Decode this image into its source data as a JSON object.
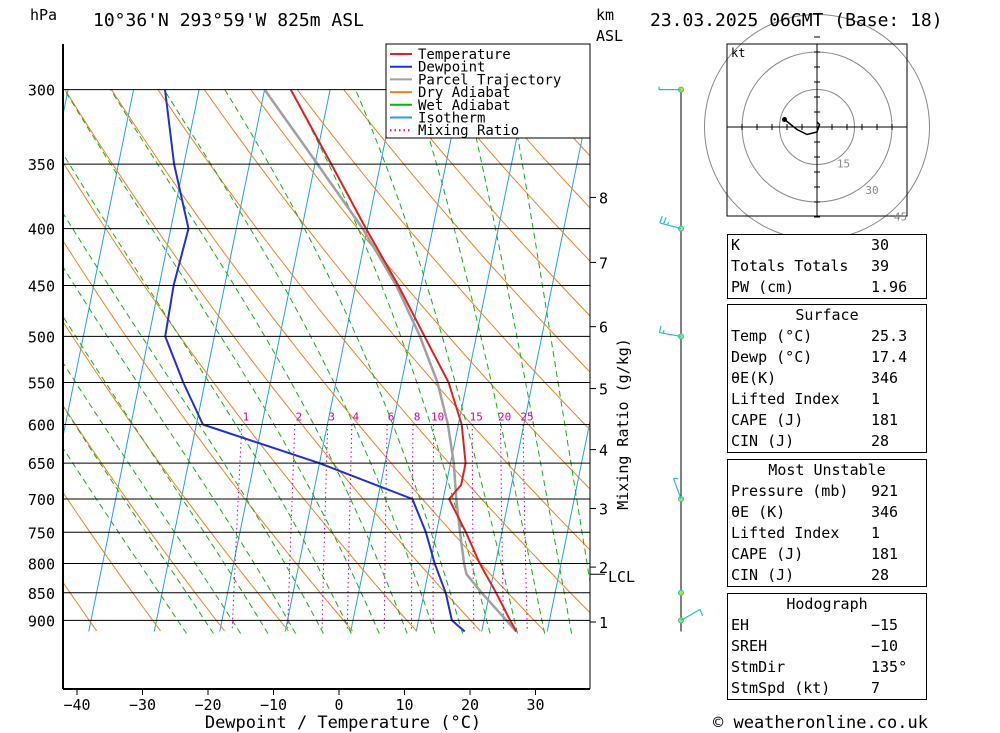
{
  "header": {
    "units_left": "hPa",
    "location": "10°36'N 293°59'W 825m ASL",
    "units_right_1": "km",
    "units_right_2": "ASL",
    "date": "23.03.2025 06GMT (Base: 18)"
  },
  "footer": {
    "copyright": "© weatheronline.co.uk"
  },
  "chart_data": {
    "type": "line",
    "subtype": "skew-T log-P",
    "xlabel": "Dewpoint / Temperature (°C)",
    "ylabel": "hPa",
    "right_axis_label": "Mixing Ratio (g/kg)",
    "xlim": [
      -42,
      38
    ],
    "ylim_hpa": [
      300,
      920
    ],
    "pressure_levels": [
      300,
      350,
      400,
      450,
      500,
      550,
      600,
      650,
      700,
      750,
      800,
      850,
      900
    ],
    "temp_ticks": [
      -40,
      -30,
      -20,
      -10,
      0,
      10,
      20,
      30
    ],
    "km_ticks": [
      {
        "km": 1,
        "p": 903
      },
      {
        "km": 2,
        "p": 806
      },
      {
        "km": 3,
        "p": 714
      },
      {
        "km": 4,
        "p": 632
      },
      {
        "km": 5,
        "p": 557
      },
      {
        "km": 6,
        "p": 490
      },
      {
        "km": 7,
        "p": 429
      },
      {
        "km": 8,
        "p": 375
      }
    ],
    "lcl": {
      "label": "LCL",
      "p": 818
    },
    "mixing_ratio_labels": [
      "1",
      "2",
      "3",
      "4",
      "6",
      "8",
      "10",
      "15",
      "20",
      "25"
    ],
    "mixing_ratio_values": [
      1,
      2,
      3,
      4,
      6,
      8,
      10,
      15,
      20,
      25
    ],
    "legend": [
      "Temperature",
      "Dewpoint",
      "Parcel Trajectory",
      "Dry Adiabat",
      "Wet Adiabat",
      "Isotherm",
      "Mixing Ratio"
    ],
    "colors": {
      "temperature": "#e02020",
      "dewpoint": "#2030d0",
      "parcel": "#a0a0a0",
      "dry_adiabat": "#f08020",
      "wet_adiabat": "#10b010",
      "isotherm": "#20a0e0",
      "mixing_ratio": "#d000a0",
      "wind": "#20c0c0"
    },
    "series": [
      {
        "name": "Temperature",
        "points": [
          [
            921,
            25.3
          ],
          [
            900,
            24
          ],
          [
            850,
            21
          ],
          [
            800,
            17.6
          ],
          [
            750,
            14.5
          ],
          [
            700,
            10.9
          ],
          [
            680,
            12.3
          ],
          [
            650,
            12.3
          ],
          [
            600,
            10.5
          ],
          [
            550,
            7.2
          ],
          [
            500,
            2.1
          ],
          [
            450,
            -3.5
          ],
          [
            400,
            -10.2
          ],
          [
            350,
            -17.5
          ],
          [
            300,
            -26
          ]
        ]
      },
      {
        "name": "Dewpoint",
        "points": [
          [
            921,
            17.4
          ],
          [
            900,
            15.1
          ],
          [
            850,
            13.3
          ],
          [
            800,
            10.7
          ],
          [
            750,
            8.4
          ],
          [
            700,
            5.3
          ],
          [
            650,
            -10
          ],
          [
            600,
            -29
          ],
          [
            550,
            -33.3
          ],
          [
            500,
            -37.5
          ],
          [
            450,
            -37.8
          ],
          [
            400,
            -37.3
          ],
          [
            350,
            -41.5
          ],
          [
            300,
            -45.2
          ]
        ]
      },
      {
        "name": "Parcel Trajectory",
        "points": [
          [
            921,
            25.3
          ],
          [
            850,
            18.8
          ],
          [
            818,
            15.9
          ],
          [
            800,
            15.2
          ],
          [
            750,
            13.6
          ],
          [
            700,
            12
          ],
          [
            650,
            10.5
          ],
          [
            600,
            8.4
          ],
          [
            550,
            5.5
          ],
          [
            500,
            1.4
          ],
          [
            450,
            -3.8
          ],
          [
            400,
            -10.7
          ],
          [
            350,
            -19.6
          ],
          [
            300,
            -30
          ]
        ]
      }
    ],
    "wind_barbs": [
      {
        "p": 300,
        "dir_deg": 270,
        "kt": 5
      },
      {
        "p": 400,
        "dir_deg": 285,
        "kt": 25
      },
      {
        "p": 500,
        "dir_deg": 280,
        "kt": 15
      },
      {
        "p": 700,
        "dir_deg": 340,
        "kt": 5
      },
      {
        "p": 850,
        "dir_deg": 90,
        "kt": 0
      },
      {
        "p": 900,
        "dir_deg": 60,
        "kt": 5
      }
    ]
  },
  "hodograph": {
    "unit_label": "kt",
    "ring_labels": [
      "15",
      "30",
      "45"
    ],
    "points": [
      [
        0,
        -2
      ],
      [
        1,
        -1
      ],
      [
        0,
        2
      ],
      [
        -4,
        3
      ],
      [
        -8,
        1
      ],
      [
        -13,
        -3
      ]
    ]
  },
  "indices": {
    "basic": [
      {
        "label": "K",
        "value": "30"
      },
      {
        "label": "Totals Totals",
        "value": "39"
      },
      {
        "label": "PW (cm)",
        "value": "1.96"
      }
    ],
    "surface": {
      "title": "Surface",
      "rows": [
        {
          "label": "Temp (°C)",
          "value": "25.3"
        },
        {
          "label": "Dewp (°C)",
          "value": "17.4"
        },
        {
          "label": "θE(K)",
          "value": "346"
        },
        {
          "label": "Lifted Index",
          "value": "1"
        },
        {
          "label": "CAPE (J)",
          "value": "181"
        },
        {
          "label": "CIN (J)",
          "value": "28"
        }
      ]
    },
    "most_unstable": {
      "title": "Most Unstable",
      "rows": [
        {
          "label": "Pressure (mb)",
          "value": "921"
        },
        {
          "label": "θE (K)",
          "value": "346"
        },
        {
          "label": "Lifted Index",
          "value": "1"
        },
        {
          "label": "CAPE (J)",
          "value": "181"
        },
        {
          "label": "CIN (J)",
          "value": "28"
        }
      ]
    },
    "hodo": {
      "title": "Hodograph",
      "rows": [
        {
          "label": "EH",
          "value": "−15"
        },
        {
          "label": "SREH",
          "value": "−10"
        },
        {
          "label": "StmDir",
          "value": "135°"
        },
        {
          "label": "StmSpd (kt)",
          "value": "7"
        }
      ]
    }
  }
}
